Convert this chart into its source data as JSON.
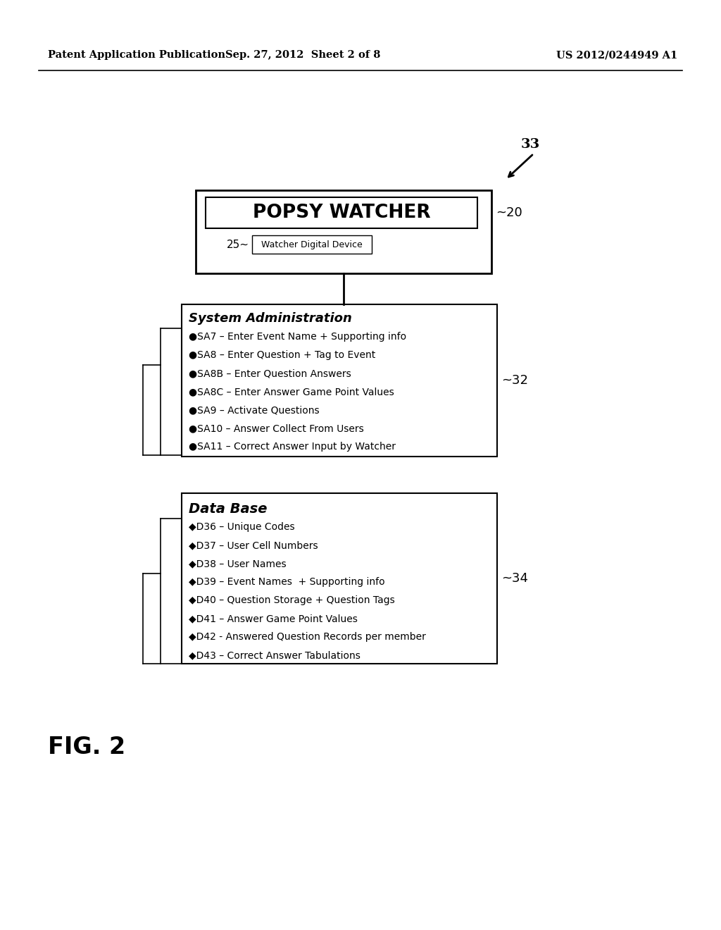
{
  "header_left": "Patent Application Publication",
  "header_center": "Sep. 27, 2012  Sheet 2 of 8",
  "header_right": "US 2012/0244949 A1",
  "popsy_title": "POPSY WATCHER",
  "popsy_label": "~20",
  "device_label": "25~",
  "device_text": "Watcher Digital Device",
  "sysadmin_title": "System Administration",
  "sysadmin_label": "~32",
  "sysadmin_items": [
    "●SA7 – Enter Event Name + Supporting info",
    "●SA8 – Enter Question + Tag to Event",
    "●SA8B – Enter Question Answers",
    "●SA8C – Enter Answer Game Point Values",
    "●SA9 – Activate Questions",
    "●SA10 – Answer Collect From Users",
    "●SA11 – Correct Answer Input by Watcher"
  ],
  "database_title": "Data Base",
  "database_label": "~34",
  "database_items": [
    "◆D36 – Unique Codes",
    "◆D37 – User Cell Numbers",
    "◆D38 – User Names",
    "◆D39 – Event Names  + Supporting info",
    "◆D40 – Question Storage + Question Tags",
    "◆D41 – Answer Game Point Values",
    "◆D42 - Answered Question Records per member",
    "◆D43 – Correct Answer Tabulations"
  ],
  "fig_label": "FIG. 2",
  "ref_33": "33",
  "bg_color": "#ffffff",
  "text_color": "#000000"
}
